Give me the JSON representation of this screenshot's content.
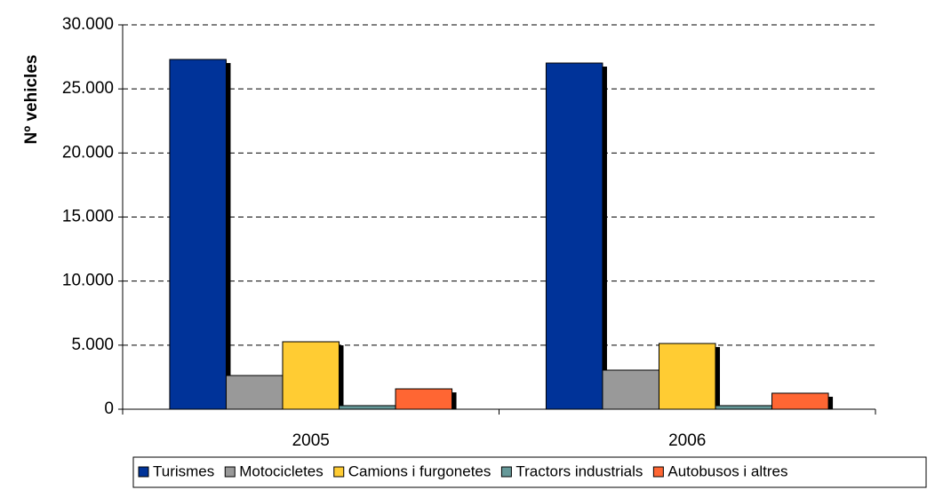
{
  "chart_data": {
    "type": "bar",
    "y_label": "Nº vehicles",
    "categories": [
      "2005",
      "2006"
    ],
    "series": [
      {
        "name": "Turismes",
        "color": "#003399",
        "values": [
          27300,
          27020
        ]
      },
      {
        "name": "Motocicletes",
        "color": "#999999",
        "values": [
          2630,
          3050
        ]
      },
      {
        "name": "Camions i furgonetes",
        "color": "#ffcc33",
        "values": [
          5265,
          5130
        ]
      },
      {
        "name": "Tractors industrials",
        "color": "#669999",
        "values": [
          280,
          280
        ]
      },
      {
        "name": "Autobusos i altres",
        "color": "#ff6633",
        "values": [
          1590,
          1250
        ]
      }
    ],
    "ylim": [
      0,
      30000
    ],
    "yticks": [
      0,
      {
        "value": 5000,
        "label": "5.000"
      },
      {
        "value": 10000,
        "label": "10.000"
      },
      {
        "value": 15000,
        "label": "15.000"
      },
      {
        "value": 20000,
        "label": "20.000"
      },
      {
        "value": 25000,
        "label": "25.000"
      },
      {
        "value": 30000,
        "label": "30.000"
      }
    ],
    "grid": true,
    "legend": "bottom"
  }
}
